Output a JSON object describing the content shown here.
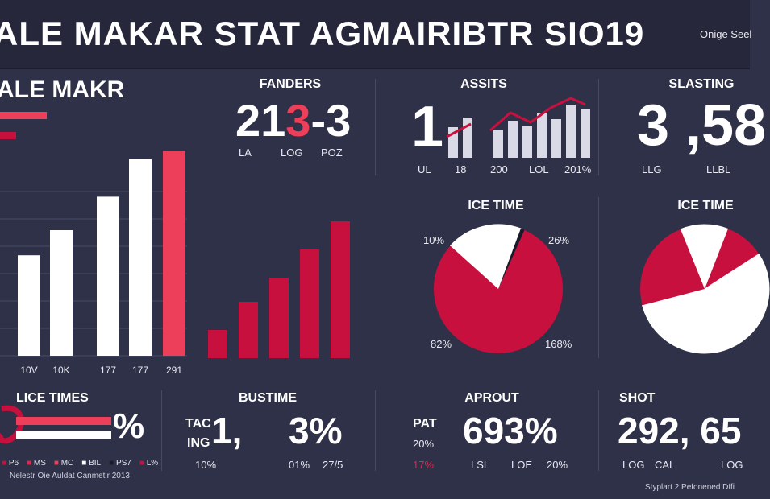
{
  "header": {
    "title": "ALE MAKAR  STAT AGMAIRIBTR SIO19",
    "subtitle": "Onige Seel"
  },
  "main_chart": {
    "title": "ALE MAKR",
    "tick_labels": [
      "10V",
      "10K",
      "177",
      "177",
      "291"
    ]
  },
  "fanders": {
    "title": "FANDERS",
    "value": "213-3",
    "labels": [
      "LA",
      "LOG",
      "POZ"
    ]
  },
  "assists": {
    "title": "ASSITS",
    "big_digit": "1",
    "labels": [
      "UL",
      "18",
      "200",
      "LOL",
      "201%"
    ]
  },
  "slasting": {
    "title": "SLASTING",
    "value": "3 ,58",
    "labels": [
      "LLG",
      "LLBL"
    ]
  },
  "ice_time_1": {
    "title": "ICE TIME",
    "labels": [
      "10%",
      "26%",
      "82%",
      "168%"
    ]
  },
  "ice_time_2": {
    "title": "ICE TIME"
  },
  "lice_times": {
    "title": "LICE TIMES",
    "value": "%",
    "legend": [
      "P6",
      "MS",
      "MC",
      "BIL",
      "PS7",
      "L%"
    ],
    "footer": "Nelestr Oie Auldat Canmetir 2013"
  },
  "bustime": {
    "title": "BUSTIME",
    "side_labels": [
      "TAC",
      "ING"
    ],
    "value_a": "1,",
    "value_b": "3%",
    "labels": [
      "10%",
      "01%",
      "27/5"
    ]
  },
  "aprout": {
    "title": "APROUT",
    "side_labels": [
      "PAT",
      "20%",
      "17%"
    ],
    "value": "693%",
    "labels": [
      "LSL",
      "LOE",
      "20%"
    ]
  },
  "shot": {
    "title": "SHOT",
    "value": "292, 65",
    "labels": [
      "LOG",
      "CAL",
      "LOG"
    ],
    "footer": "Styplart 2 Pefonened Dffi"
  },
  "colors": {
    "background": "#2f3148",
    "header": "#26273a",
    "accent_red": "#c8103e",
    "bright_red": "#ee3f5a",
    "white": "#ffffff"
  },
  "chart_data": [
    {
      "type": "bar",
      "categories": [
        "10V",
        "10K",
        "177",
        "177",
        "291"
      ],
      "series": [
        {
          "values": [
            240,
            300,
            380,
            470,
            490
          ]
        }
      ]
    },
    {
      "type": "bar",
      "series": [
        {
          "values": [
            35,
            70,
            100,
            135,
            170
          ]
        }
      ]
    },
    {
      "type": "pie",
      "values": [
        19,
        1,
        80
      ]
    },
    {
      "type": "pie",
      "values": [
        12,
        10,
        55,
        23
      ]
    }
  ]
}
